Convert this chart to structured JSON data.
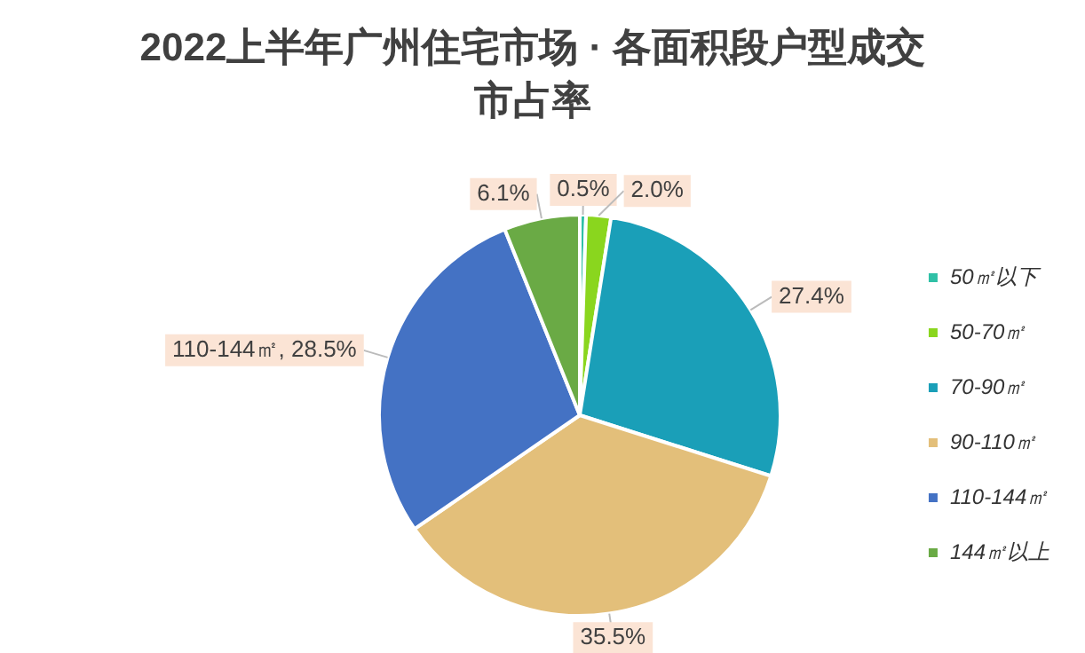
{
  "chart_data": {
    "type": "pie",
    "title": "2022上半年广州住宅市场 · 各面积段户型成交市占率",
    "categories": [
      "50㎡以下",
      "50-70㎡",
      "70-90㎡",
      "90-110㎡",
      "110-144㎡",
      "144㎡以上"
    ],
    "values": [
      0.5,
      2.0,
      27.4,
      35.5,
      28.5,
      6.1
    ],
    "colors": [
      "#2fc0a6",
      "#8ad61e",
      "#1a9fb8",
      "#e3bf7a",
      "#4472c4",
      "#6aaa45"
    ],
    "value_labels": [
      "0.5%",
      "2.0%",
      "27.4%",
      "35.5%",
      "110-144㎡, 28.5%",
      "6.1%"
    ],
    "legend": "right"
  }
}
